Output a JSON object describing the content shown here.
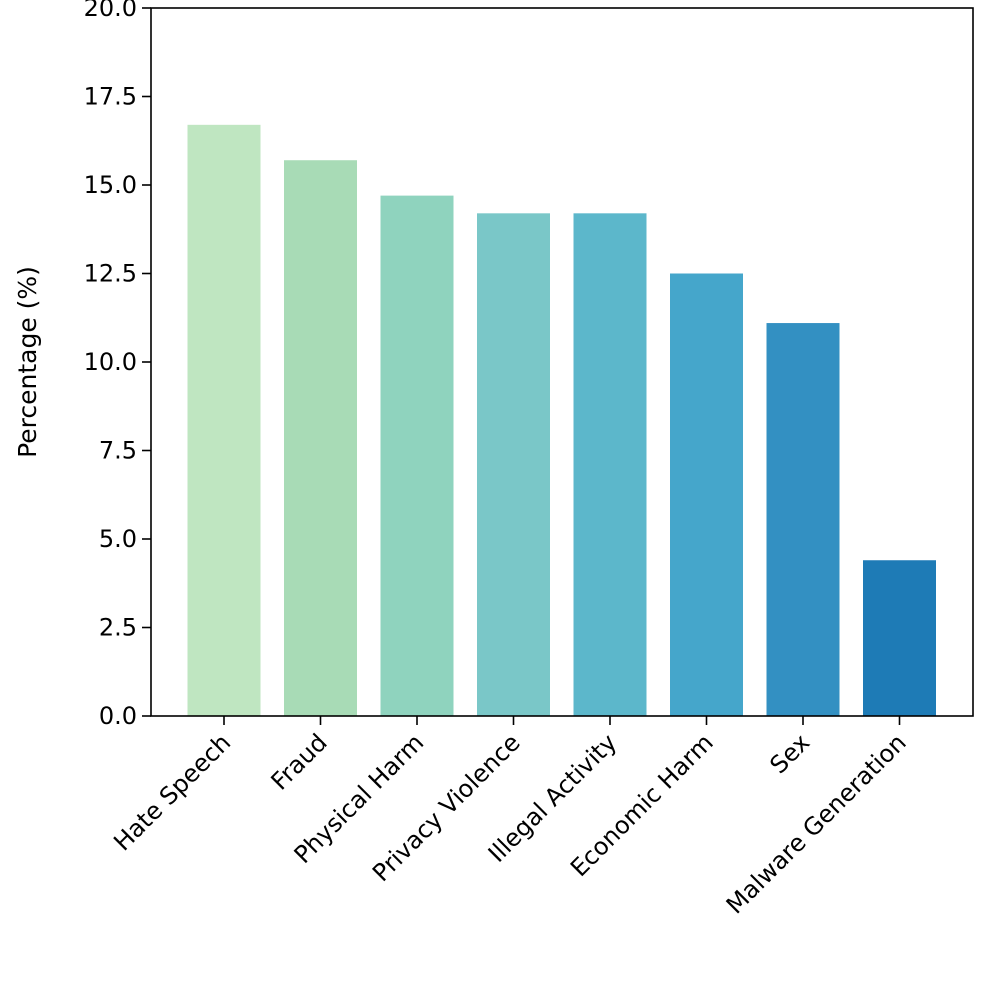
{
  "chart_data": {
    "type": "bar",
    "title": "",
    "xlabel": "",
    "ylabel": "Percentage (%)",
    "ylim": [
      0,
      20
    ],
    "yticks": [
      "0.0",
      "2.5",
      "5.0",
      "7.5",
      "10.0",
      "12.5",
      "15.0",
      "17.5",
      "20.0"
    ],
    "grid": false,
    "categories": [
      "Hate Speech",
      "Fraud",
      "Physical Harm",
      "Privacy Violence",
      "Illegal Activity",
      "Economic Harm",
      "Sex",
      "Malware Generation"
    ],
    "values": [
      16.7,
      15.7,
      14.7,
      14.2,
      14.2,
      12.5,
      11.1,
      4.4
    ],
    "colors": [
      "#bfe6c1",
      "#a8dbb6",
      "#8fd3be",
      "#7ac7c8",
      "#5cb7cb",
      "#45a6cb",
      "#3390c2",
      "#1e7bb6"
    ]
  }
}
